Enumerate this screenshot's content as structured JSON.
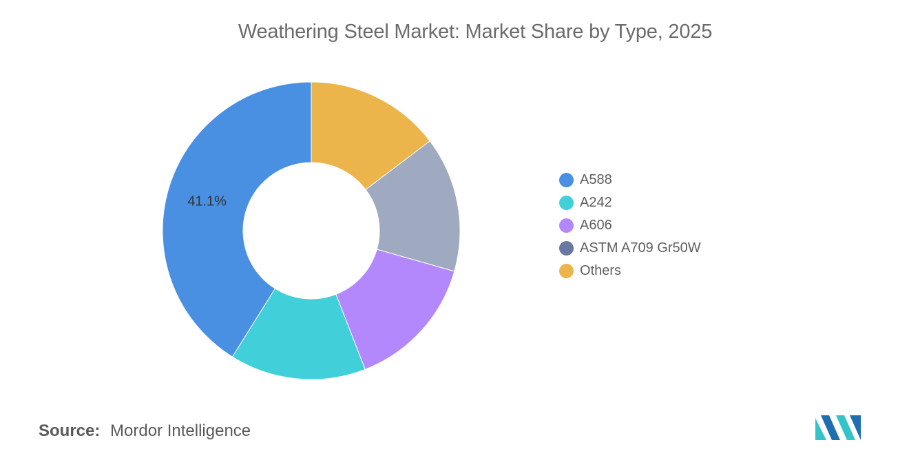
{
  "chart_data": {
    "type": "pie",
    "title": "Weathering Steel Market: Market Share by Type, 2025",
    "categories": [
      "A588",
      "A242",
      "A606",
      "ASTM A709 Gr50W",
      "Others"
    ],
    "values": [
      41.1,
      14.8,
      14.7,
      14.7,
      14.7
    ],
    "data_labels": [
      "41.1%",
      "",
      "",
      "",
      ""
    ],
    "colors": [
      "#4a90e2",
      "#41d0da",
      "#b388fc",
      "#9faac0",
      "#ebb54b"
    ],
    "legend_colors": [
      "#4a90e2",
      "#41d0da",
      "#b388fc",
      "#6878a0",
      "#ebb54b"
    ],
    "donut": true,
    "legend_position": "right"
  },
  "source": {
    "label": "Source:",
    "value": "Mordor Intelligence"
  },
  "logo": {
    "icon": "mordor-intelligence-logo-icon",
    "colors": [
      "#1f6fb0",
      "#33c3c8"
    ]
  }
}
